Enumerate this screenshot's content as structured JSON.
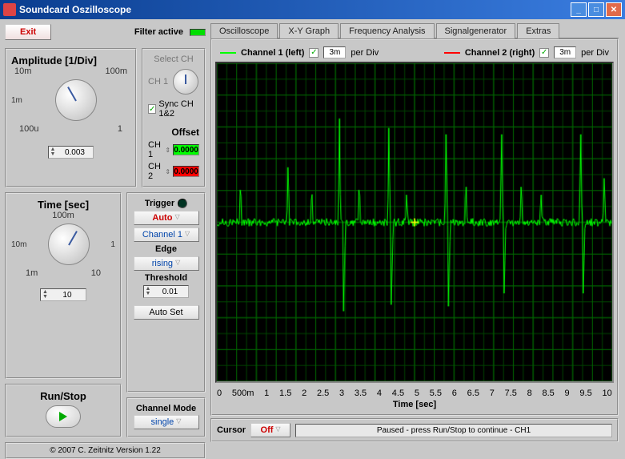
{
  "window": {
    "title": "Soundcard Oszilloscope"
  },
  "toolbar": {
    "exit": "Exit",
    "filter_active": "Filter active"
  },
  "tabs": {
    "items": [
      "Oscilloscope",
      "X-Y Graph",
      "Frequency Analysis",
      "Signalgenerator",
      "Extras"
    ],
    "active_index": 0
  },
  "legend": {
    "ch1_label": "Channel 1 (left)",
    "ch1_checked": true,
    "ch1_perdiv": "3m",
    "ch2_label": "Channel 2 (right)",
    "ch2_checked": true,
    "ch2_perdiv": "3m",
    "perdiv_suffix": "per Div",
    "ch1_color": "#00ff00",
    "ch2_color": "#ff0000"
  },
  "amplitude": {
    "title": "Amplitude [1/Div]",
    "ticks": [
      "1m",
      "10m",
      "100m",
      "100u",
      "1"
    ],
    "value": "0.003"
  },
  "select_ch": {
    "title": "Select CH",
    "label": "CH 1",
    "sync_label": "Sync CH 1&2",
    "sync_checked": true
  },
  "offset": {
    "title": "Offset",
    "ch1_label": "CH 1",
    "ch1_value": "0.0000",
    "ch2_label": "CH 2",
    "ch2_value": "0.0000"
  },
  "time": {
    "title": "Time [sec]",
    "ticks": [
      "10m",
      "100m",
      "1",
      "1m",
      "10"
    ],
    "value": "10"
  },
  "trigger": {
    "title": "Trigger",
    "mode": "Auto",
    "source": "Channel 1",
    "edge_label": "Edge",
    "edge_value": "rising",
    "threshold_label": "Threshold",
    "threshold_value": "0.01",
    "autoset": "Auto Set"
  },
  "runstop": {
    "title": "Run/Stop"
  },
  "channel_mode": {
    "title": "Channel Mode",
    "value": "single"
  },
  "credits": {
    "text": "© 2007  C. Zeitnitz Version 1.22"
  },
  "scope": {
    "bg": "#000000",
    "grid_color": "#004400",
    "grid_major_color": "#006600",
    "trace_color": "#00ff00",
    "center_marker_color": "#ffff00",
    "xaxis_label": "Time [sec]",
    "xlim": [
      0,
      10
    ],
    "xticks": [
      "0",
      "500m",
      "1",
      "1.5",
      "2",
      "2.5",
      "3",
      "3.5",
      "4",
      "4.5",
      "5",
      "5.5",
      "6",
      "6.5",
      "7",
      "7.5",
      "8",
      "8.5",
      "9",
      "9.5",
      "10"
    ],
    "baseline_y": 0.5,
    "noise_amp": 0.025,
    "spikes_x": [
      0.6,
      1.8,
      2.4,
      3.1,
      3.6,
      4.35,
      4.8,
      5.8,
      6.3,
      7.2,
      7.7,
      8.2,
      9.2,
      9.8
    ],
    "spike_heights": [
      0.14,
      0.2,
      0.12,
      0.35,
      0.14,
      0.33,
      0.1,
      0.32,
      0.14,
      0.32,
      0.14,
      0.1,
      0.32,
      0.16
    ],
    "spike_negative_x": [
      3.2,
      4.4,
      5.85,
      7.25,
      9.25
    ],
    "spike_neg_depth": 0.3,
    "grid_divs_x": 20,
    "grid_divs_y": 10
  },
  "cursor": {
    "label": "Cursor",
    "mode": "Off"
  },
  "status": {
    "text": "Paused - press Run/Stop to continue - CH1"
  }
}
